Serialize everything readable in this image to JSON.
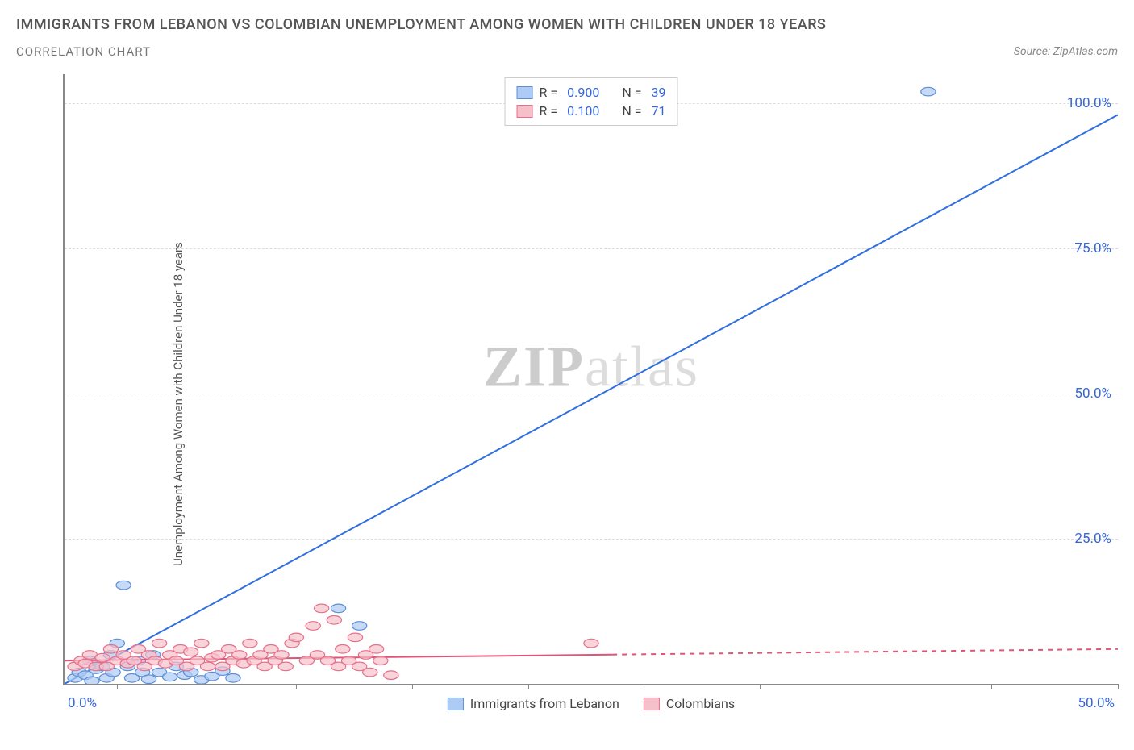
{
  "title": "IMMIGRANTS FROM LEBANON VS COLOMBIAN UNEMPLOYMENT AMONG WOMEN WITH CHILDREN UNDER 18 YEARS",
  "subtitle": "CORRELATION CHART",
  "source": "Source: ZipAtlas.com",
  "ylabel": "Unemployment Among Women with Children Under 18 years",
  "watermark_a": "ZIP",
  "watermark_b": "atlas",
  "chart": {
    "type": "scatter",
    "xlim": [
      0,
      50
    ],
    "ylim": [
      0,
      105
    ],
    "xtick_positions_pct": [
      5,
      11,
      22,
      33,
      44,
      55,
      66,
      88,
      100
    ],
    "xtick_labels": {
      "left": "0.0%",
      "right": "50.0%"
    },
    "ytick_positions": [
      25,
      50,
      75,
      100
    ],
    "ytick_labels": [
      "25.0%",
      "50.0%",
      "75.0%",
      "100.0%"
    ],
    "grid_color": "#dddddd",
    "background_color": "#ffffff",
    "axis_color": "#888888",
    "label_color": "#3366dd",
    "marker_radius": 7,
    "marker_stroke_width": 1.2,
    "line_width": 2
  },
  "series": [
    {
      "id": "lebanon",
      "name": "Immigrants from Lebanon",
      "color_fill": "#aecbf5",
      "color_stroke": "#5b8fd6",
      "line_color": "#2f6fe0",
      "r": "0.900",
      "n": "39",
      "regression": {
        "x1": 0,
        "y1": 0,
        "x2": 50,
        "y2": 98,
        "dash": false
      },
      "points": [
        [
          0.5,
          1
        ],
        [
          0.7,
          2
        ],
        [
          1,
          1.5
        ],
        [
          1.2,
          4
        ],
        [
          1.3,
          0.5
        ],
        [
          1.5,
          2.5
        ],
        [
          1.8,
          3
        ],
        [
          2,
          1
        ],
        [
          2.2,
          5
        ],
        [
          2.3,
          2
        ],
        [
          2.5,
          7
        ],
        [
          2.8,
          17
        ],
        [
          3,
          3
        ],
        [
          3.2,
          1
        ],
        [
          3.5,
          4
        ],
        [
          3.7,
          2
        ],
        [
          4,
          0.8
        ],
        [
          4.2,
          5
        ],
        [
          4.5,
          2
        ],
        [
          5,
          1.2
        ],
        [
          5.3,
          3
        ],
        [
          5.7,
          1.5
        ],
        [
          6,
          2
        ],
        [
          6.5,
          0.7
        ],
        [
          7,
          1.3
        ],
        [
          7.5,
          2.2
        ],
        [
          8,
          1
        ],
        [
          13,
          13
        ],
        [
          14,
          10
        ],
        [
          41,
          102
        ]
      ]
    },
    {
      "id": "colombians",
      "name": "Colombians",
      "color_fill": "#f6c0cb",
      "color_stroke": "#e6708a",
      "line_color": "#e05577",
      "r": "0.100",
      "n": "71",
      "regression": {
        "x1": 0,
        "y1": 4,
        "x2": 50,
        "y2": 6,
        "dash_after_x": 26
      },
      "points": [
        [
          0.5,
          3
        ],
        [
          0.8,
          4
        ],
        [
          1,
          3.5
        ],
        [
          1.2,
          5
        ],
        [
          1.5,
          3
        ],
        [
          1.8,
          4.5
        ],
        [
          2,
          3
        ],
        [
          2.2,
          6
        ],
        [
          2.5,
          4
        ],
        [
          2.8,
          5
        ],
        [
          3,
          3.5
        ],
        [
          3.3,
          4
        ],
        [
          3.5,
          6
        ],
        [
          3.8,
          3
        ],
        [
          4,
          5
        ],
        [
          4.3,
          4
        ],
        [
          4.5,
          7
        ],
        [
          4.8,
          3.5
        ],
        [
          5,
          5
        ],
        [
          5.3,
          4
        ],
        [
          5.5,
          6
        ],
        [
          5.8,
          3
        ],
        [
          6,
          5.5
        ],
        [
          6.3,
          4
        ],
        [
          6.5,
          7
        ],
        [
          6.8,
          3
        ],
        [
          7,
          4.5
        ],
        [
          7.3,
          5
        ],
        [
          7.5,
          3
        ],
        [
          7.8,
          6
        ],
        [
          8,
          4
        ],
        [
          8.3,
          5
        ],
        [
          8.5,
          3.5
        ],
        [
          8.8,
          7
        ],
        [
          9,
          4
        ],
        [
          9.3,
          5
        ],
        [
          9.5,
          3
        ],
        [
          9.8,
          6
        ],
        [
          10,
          4
        ],
        [
          10.3,
          5
        ],
        [
          10.5,
          3
        ],
        [
          10.8,
          7
        ],
        [
          11,
          8
        ],
        [
          11.5,
          4
        ],
        [
          11.8,
          10
        ],
        [
          12,
          5
        ],
        [
          12.2,
          13
        ],
        [
          12.5,
          4
        ],
        [
          12.8,
          11
        ],
        [
          13,
          3
        ],
        [
          13.2,
          6
        ],
        [
          13.5,
          4
        ],
        [
          13.8,
          8
        ],
        [
          14,
          3
        ],
        [
          14.3,
          5
        ],
        [
          14.5,
          2
        ],
        [
          14.8,
          6
        ],
        [
          15,
          4
        ],
        [
          15.5,
          1.5
        ],
        [
          25,
          7
        ]
      ]
    }
  ],
  "legend_top_label_r": "R =",
  "legend_top_label_n": "N ="
}
